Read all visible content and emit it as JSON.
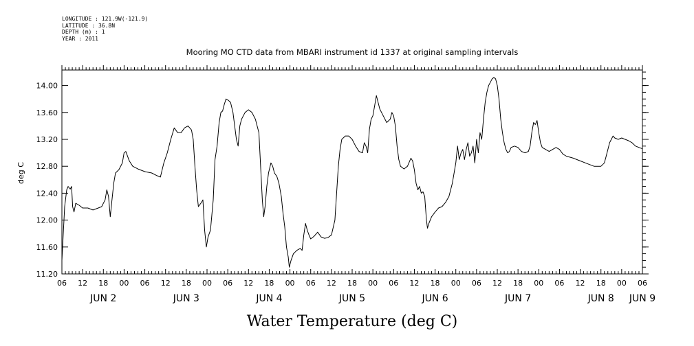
{
  "meta": {
    "longitude": "LONGITUDE : 121.9W(-121.9)",
    "latitude": "LATITUDE : 36.8N",
    "depth": "DEPTH (m) : 1",
    "year": "YEAR : 2011"
  },
  "chart_data": {
    "type": "line",
    "title": "Mooring MO CTD data from MBARI instrument id 1337 at original sampling intervals",
    "ylabel": "deg C",
    "bottom_title": "Water Temperature (deg C)",
    "ylim": [
      11.2,
      14.2
    ],
    "xlim": [
      0,
      168
    ],
    "x_unit": "hours since Jun 2 06:00",
    "y_ticks": [
      "11.20",
      "11.60",
      "12.00",
      "12.40",
      "12.80",
      "13.20",
      "13.60",
      "14.00"
    ],
    "y_tick_values": [
      11.2,
      11.6,
      12.0,
      12.4,
      12.8,
      13.2,
      13.6,
      14.0
    ],
    "hour_ticks": [
      "06",
      "12",
      "18",
      "00",
      "06",
      "12",
      "18",
      "00",
      "06",
      "12",
      "18",
      "00",
      "06",
      "12",
      "18",
      "00",
      "06",
      "12",
      "18",
      "00",
      "06",
      "12",
      "18",
      "00",
      "06",
      "12",
      "18",
      "00",
      "06"
    ],
    "day_labels": [
      {
        "label": "JUN  2",
        "hour": 12
      },
      {
        "label": "JUN  3",
        "hour": 36
      },
      {
        "label": "JUN  4",
        "hour": 60
      },
      {
        "label": "JUN  5",
        "hour": 84
      },
      {
        "label": "JUN  6",
        "hour": 108
      },
      {
        "label": "JUN  7",
        "hour": 132
      },
      {
        "label": "JUN  8",
        "hour": 156
      },
      {
        "label": "JUN  9",
        "hour": 168
      }
    ],
    "series": [
      {
        "color": "#000000",
        "points": [
          [
            0,
            11.4
          ],
          [
            0.8,
            12.2
          ],
          [
            1.4,
            12.45
          ],
          [
            1.8,
            12.5
          ],
          [
            2.4,
            12.46
          ],
          [
            2.8,
            12.5
          ],
          [
            3.1,
            12.2
          ],
          [
            3.5,
            12.12
          ],
          [
            4.0,
            12.25
          ],
          [
            5.0,
            12.22
          ],
          [
            6.0,
            12.18
          ],
          [
            7.5,
            12.18
          ],
          [
            9.0,
            12.15
          ],
          [
            10.5,
            12.18
          ],
          [
            11.5,
            12.2
          ],
          [
            12.5,
            12.3
          ],
          [
            13.0,
            12.45
          ],
          [
            13.5,
            12.35
          ],
          [
            14.0,
            12.05
          ],
          [
            14.5,
            12.3
          ],
          [
            15.0,
            12.55
          ],
          [
            15.5,
            12.7
          ],
          [
            16.5,
            12.75
          ],
          [
            17.5,
            12.85
          ],
          [
            18.0,
            13.0
          ],
          [
            18.5,
            13.02
          ],
          [
            19.5,
            12.88
          ],
          [
            20.5,
            12.8
          ],
          [
            22.0,
            12.76
          ],
          [
            24.0,
            12.72
          ],
          [
            26.0,
            12.7
          ],
          [
            27.5,
            12.66
          ],
          [
            28.5,
            12.64
          ],
          [
            29.5,
            12.85
          ],
          [
            30.5,
            13.0
          ],
          [
            31.5,
            13.2
          ],
          [
            32.5,
            13.37
          ],
          [
            33.5,
            13.3
          ],
          [
            34.5,
            13.3
          ],
          [
            35.5,
            13.37
          ],
          [
            36.5,
            13.4
          ],
          [
            37.5,
            13.34
          ],
          [
            38.0,
            13.2
          ],
          [
            38.5,
            12.8
          ],
          [
            39.0,
            12.45
          ],
          [
            39.5,
            12.2
          ],
          [
            40.2,
            12.25
          ],
          [
            40.8,
            12.3
          ],
          [
            41.3,
            11.85
          ],
          [
            41.8,
            11.6
          ],
          [
            42.3,
            11.75
          ],
          [
            43.0,
            11.85
          ],
          [
            43.8,
            12.3
          ],
          [
            44.3,
            12.9
          ],
          [
            44.9,
            13.1
          ],
          [
            45.5,
            13.45
          ],
          [
            46.0,
            13.6
          ],
          [
            46.5,
            13.62
          ],
          [
            47.0,
            13.72
          ],
          [
            47.5,
            13.8
          ],
          [
            48.2,
            13.78
          ],
          [
            48.8,
            13.75
          ],
          [
            49.5,
            13.6
          ],
          [
            50.0,
            13.4
          ],
          [
            50.5,
            13.2
          ],
          [
            51.0,
            13.1
          ],
          [
            51.5,
            13.4
          ],
          [
            52.0,
            13.5
          ],
          [
            53.0,
            13.6
          ],
          [
            54.0,
            13.64
          ],
          [
            55.0,
            13.6
          ],
          [
            56.0,
            13.5
          ],
          [
            57.0,
            13.3
          ],
          [
            57.5,
            12.8
          ],
          [
            58.0,
            12.3
          ],
          [
            58.4,
            12.05
          ],
          [
            58.8,
            12.2
          ],
          [
            59.3,
            12.5
          ],
          [
            59.8,
            12.7
          ],
          [
            60.5,
            12.85
          ],
          [
            61.0,
            12.8
          ],
          [
            61.5,
            12.7
          ],
          [
            62.2,
            12.65
          ],
          [
            62.8,
            12.55
          ],
          [
            63.5,
            12.35
          ],
          [
            64.0,
            12.1
          ],
          [
            64.5,
            11.9
          ],
          [
            65.0,
            11.6
          ],
          [
            65.5,
            11.45
          ],
          [
            65.8,
            11.3
          ],
          [
            66.3,
            11.4
          ],
          [
            67.0,
            11.5
          ],
          [
            68.0,
            11.55
          ],
          [
            69.0,
            11.58
          ],
          [
            69.5,
            11.55
          ],
          [
            70.0,
            11.78
          ],
          [
            70.5,
            11.95
          ],
          [
            71.0,
            11.85
          ],
          [
            71.5,
            11.78
          ],
          [
            72.0,
            11.72
          ],
          [
            73.0,
            11.76
          ],
          [
            74.0,
            11.82
          ],
          [
            75.0,
            11.75
          ],
          [
            76.0,
            11.73
          ],
          [
            77.0,
            11.74
          ],
          [
            78.0,
            11.78
          ],
          [
            79.0,
            12.0
          ],
          [
            79.5,
            12.4
          ],
          [
            80.0,
            12.8
          ],
          [
            80.5,
            13.05
          ],
          [
            81.0,
            13.2
          ],
          [
            82.0,
            13.25
          ],
          [
            83.0,
            13.25
          ],
          [
            84.0,
            13.2
          ],
          [
            85.0,
            13.1
          ],
          [
            86.0,
            13.02
          ],
          [
            87.0,
            13.0
          ],
          [
            87.5,
            13.15
          ],
          [
            88.0,
            13.1
          ],
          [
            88.5,
            13.0
          ],
          [
            89.0,
            13.35
          ],
          [
            89.5,
            13.5
          ],
          [
            90.0,
            13.55
          ],
          [
            90.5,
            13.7
          ],
          [
            91.0,
            13.85
          ],
          [
            91.5,
            13.75
          ],
          [
            92.0,
            13.65
          ],
          [
            93.0,
            13.55
          ],
          [
            94.0,
            13.45
          ],
          [
            95.0,
            13.5
          ],
          [
            95.5,
            13.6
          ],
          [
            96.0,
            13.55
          ],
          [
            96.5,
            13.4
          ],
          [
            97.0,
            13.1
          ],
          [
            97.5,
            12.9
          ],
          [
            98.0,
            12.8
          ],
          [
            99.0,
            12.76
          ],
          [
            100.0,
            12.8
          ],
          [
            101.0,
            12.92
          ],
          [
            101.5,
            12.88
          ],
          [
            102.0,
            12.75
          ],
          [
            102.5,
            12.55
          ],
          [
            103.0,
            12.45
          ],
          [
            103.5,
            12.5
          ],
          [
            104.0,
            12.4
          ],
          [
            104.5,
            12.42
          ],
          [
            105.0,
            12.35
          ],
          [
            105.5,
            12.0
          ],
          [
            105.8,
            11.88
          ],
          [
            106.2,
            11.95
          ],
          [
            107.0,
            12.05
          ],
          [
            108.0,
            12.12
          ],
          [
            109.0,
            12.18
          ],
          [
            110.0,
            12.2
          ],
          [
            111.0,
            12.26
          ],
          [
            112.0,
            12.35
          ],
          [
            113.0,
            12.55
          ],
          [
            113.5,
            12.7
          ],
          [
            114.0,
            12.85
          ],
          [
            114.5,
            13.1
          ],
          [
            115.0,
            12.9
          ],
          [
            115.5,
            13.0
          ],
          [
            116.0,
            13.05
          ],
          [
            116.5,
            12.9
          ],
          [
            117.0,
            13.05
          ],
          [
            117.5,
            13.15
          ],
          [
            118.0,
            12.95
          ],
          [
            118.5,
            13.0
          ],
          [
            119.0,
            13.1
          ],
          [
            119.5,
            12.85
          ],
          [
            120.0,
            13.2
          ],
          [
            120.5,
            13.0
          ],
          [
            121.0,
            13.3
          ],
          [
            121.5,
            13.2
          ],
          [
            122.0,
            13.5
          ],
          [
            122.5,
            13.75
          ],
          [
            123.0,
            13.9
          ],
          [
            123.5,
            14.0
          ],
          [
            124.0,
            14.05
          ],
          [
            124.5,
            14.1
          ],
          [
            125.0,
            14.12
          ],
          [
            125.5,
            14.1
          ],
          [
            126.0,
            14.0
          ],
          [
            126.5,
            13.8
          ],
          [
            127.0,
            13.5
          ],
          [
            127.5,
            13.3
          ],
          [
            128.0,
            13.15
          ],
          [
            128.5,
            13.05
          ],
          [
            129.0,
            13.0
          ],
          [
            129.5,
            13.02
          ],
          [
            130.0,
            13.08
          ],
          [
            131.0,
            13.1
          ],
          [
            132.0,
            13.08
          ],
          [
            133.0,
            13.02
          ],
          [
            134.0,
            13.0
          ],
          [
            135.0,
            13.02
          ],
          [
            135.5,
            13.1
          ],
          [
            136.0,
            13.3
          ],
          [
            136.5,
            13.45
          ],
          [
            137.0,
            13.42
          ],
          [
            137.5,
            13.48
          ],
          [
            138.0,
            13.3
          ],
          [
            138.5,
            13.15
          ],
          [
            139.0,
            13.08
          ],
          [
            140.0,
            13.05
          ],
          [
            141.0,
            13.02
          ],
          [
            142.0,
            13.05
          ],
          [
            143.0,
            13.08
          ],
          [
            144.0,
            13.05
          ],
          [
            145.0,
            12.98
          ],
          [
            146.0,
            12.95
          ],
          [
            148.0,
            12.92
          ],
          [
            150.0,
            12.88
          ],
          [
            152.0,
            12.84
          ],
          [
            154.0,
            12.8
          ],
          [
            156.0,
            12.8
          ],
          [
            157.0,
            12.85
          ],
          [
            157.5,
            12.95
          ],
          [
            158.0,
            13.05
          ],
          [
            158.5,
            13.15
          ],
          [
            159.0,
            13.2
          ],
          [
            159.5,
            13.25
          ],
          [
            160.0,
            13.22
          ],
          [
            161.0,
            13.2
          ],
          [
            162.0,
            13.22
          ],
          [
            163.0,
            13.2
          ],
          [
            164.0,
            13.18
          ],
          [
            165.0,
            13.15
          ],
          [
            166.0,
            13.1
          ],
          [
            167.0,
            13.08
          ],
          [
            168.0,
            13.06
          ]
        ]
      }
    ]
  }
}
